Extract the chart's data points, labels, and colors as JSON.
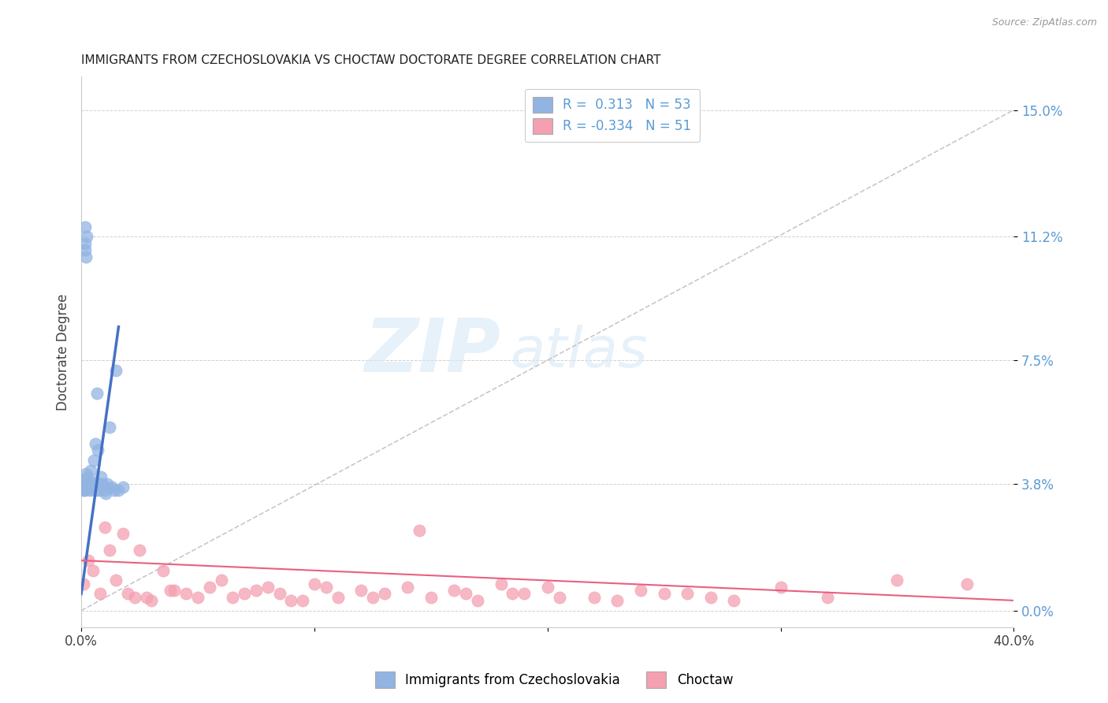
{
  "title": "IMMIGRANTS FROM CZECHOSLOVAKIA VS CHOCTAW DOCTORATE DEGREE CORRELATION CHART",
  "source": "Source: ZipAtlas.com",
  "ylabel": "Doctorate Degree",
  "ytick_values": [
    0.0,
    3.8,
    7.5,
    11.2,
    15.0
  ],
  "ytick_labels": [
    "0.0%",
    "3.8%",
    "7.5%",
    "11.2%",
    "15.0%"
  ],
  "xtick_values": [
    0,
    10,
    20,
    30,
    40
  ],
  "xtick_labels": [
    "0.0%",
    "",
    "",
    "",
    "40.0%"
  ],
  "xlim": [
    0.0,
    40.0
  ],
  "ylim": [
    -0.5,
    16.0
  ],
  "color_blue": "#92B4E3",
  "color_pink": "#F4A0B0",
  "color_blue_line": "#4472C4",
  "color_pink_line": "#E86080",
  "color_diag_line": "#C8C8C8",
  "watermark_zip": "ZIP",
  "watermark_atlas": "atlas",
  "legend_label1": "Immigrants from Czechoslovakia",
  "legend_label2": "Choctaw",
  "blue_scatter_x": [
    0.05,
    0.05,
    0.08,
    0.08,
    0.1,
    0.1,
    0.12,
    0.12,
    0.14,
    0.14,
    0.15,
    0.15,
    0.16,
    0.16,
    0.18,
    0.18,
    0.2,
    0.2,
    0.22,
    0.22,
    0.25,
    0.25,
    0.28,
    0.3,
    0.32,
    0.35,
    0.38,
    0.4,
    0.42,
    0.45,
    0.48,
    0.5,
    0.52,
    0.55,
    0.58,
    0.6,
    0.62,
    0.65,
    0.68,
    0.72,
    0.78,
    0.85,
    0.9,
    0.95,
    1.0,
    1.05,
    1.1,
    1.2,
    1.3,
    1.4,
    1.5,
    1.6,
    1.8
  ],
  "blue_scatter_y": [
    3.8,
    3.6,
    3.7,
    3.9,
    3.8,
    3.7,
    3.85,
    3.65,
    3.8,
    3.7,
    11.0,
    3.9,
    10.8,
    3.75,
    11.5,
    3.6,
    10.6,
    4.1,
    3.9,
    11.2,
    3.7,
    4.0,
    3.8,
    3.7,
    3.8,
    3.65,
    3.6,
    4.2,
    3.75,
    3.8,
    3.7,
    3.7,
    4.5,
    3.8,
    3.7,
    3.6,
    5.0,
    3.85,
    6.5,
    4.8,
    3.6,
    4.0,
    3.8,
    3.75,
    3.6,
    3.5,
    3.8,
    5.5,
    3.7,
    3.6,
    7.2,
    3.6,
    3.7
  ],
  "pink_scatter_x": [
    0.1,
    0.3,
    0.5,
    0.8,
    1.0,
    1.2,
    1.5,
    1.8,
    2.0,
    2.3,
    2.5,
    2.8,
    3.0,
    3.5,
    3.8,
    4.0,
    4.5,
    5.0,
    5.5,
    6.0,
    6.5,
    7.0,
    7.5,
    8.0,
    8.5,
    9.0,
    9.5,
    10.0,
    10.5,
    11.0,
    12.0,
    12.5,
    13.0,
    14.0,
    14.5,
    15.0,
    16.0,
    16.5,
    17.0,
    18.0,
    18.5,
    19.0,
    20.0,
    20.5,
    22.0,
    23.0,
    24.0,
    25.0,
    26.0,
    27.0,
    28.0,
    30.0,
    32.0,
    35.0,
    38.0
  ],
  "pink_scatter_y": [
    0.8,
    1.5,
    1.2,
    0.5,
    2.5,
    1.8,
    0.9,
    2.3,
    0.5,
    0.4,
    1.8,
    0.4,
    0.3,
    1.2,
    0.6,
    0.6,
    0.5,
    0.4,
    0.7,
    0.9,
    0.4,
    0.5,
    0.6,
    0.7,
    0.5,
    0.3,
    0.3,
    0.8,
    0.7,
    0.4,
    0.6,
    0.4,
    0.5,
    0.7,
    2.4,
    0.4,
    0.6,
    0.5,
    0.3,
    0.8,
    0.5,
    0.5,
    0.7,
    0.4,
    0.4,
    0.3,
    0.6,
    0.5,
    0.5,
    0.4,
    0.3,
    0.7,
    0.4,
    0.9,
    0.8
  ],
  "blue_line_x": [
    0.0,
    1.6
  ],
  "blue_line_y": [
    0.5,
    8.5
  ],
  "pink_line_x": [
    0.0,
    40.0
  ],
  "pink_line_y": [
    1.5,
    0.3
  ],
  "diag_line_x": [
    0.0,
    40.0
  ],
  "diag_line_y": [
    0.0,
    15.0
  ]
}
